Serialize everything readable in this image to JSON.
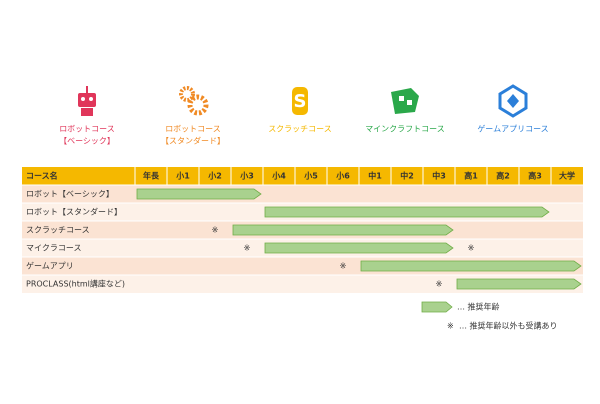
{
  "courses": [
    {
      "lines": [
        "ロボットコース",
        "【ベーシック】"
      ],
      "color": "#e0365a"
    },
    {
      "lines": [
        "ロボットコース",
        "【スタンダード】"
      ],
      "color": "#f08a24"
    },
    {
      "lines": [
        "スクラッチコース"
      ],
      "color": "#f5b800"
    },
    {
      "lines": [
        "マインクラフトコース"
      ],
      "color": "#2aa84a"
    },
    {
      "lines": [
        "ゲームアプリコース"
      ],
      "color": "#2b7fd9"
    }
  ],
  "table": {
    "corner": "コース名",
    "columns": [
      "年長",
      "小1",
      "小2",
      "小3",
      "小4",
      "小5",
      "小6",
      "中1",
      "中2",
      "中3",
      "高1",
      "高2",
      "高3",
      "大学"
    ],
    "note_mark": "※",
    "rows": [
      {
        "label": "ロボット【ベーシック】",
        "from": "年長",
        "to": "小3",
        "notes": []
      },
      {
        "label": "ロボット【スタンダード】",
        "from": "小4",
        "to": "高3",
        "notes": []
      },
      {
        "label": "スクラッチコース",
        "from": "小3",
        "to": "中3",
        "notes": [
          "小2"
        ]
      },
      {
        "label": "マイクラコース",
        "from": "小4",
        "to": "中3",
        "notes": [
          "小3",
          "高1"
        ]
      },
      {
        "label": "ゲームアプリ",
        "from": "中1",
        "to": "大学",
        "notes": [
          "小6"
        ]
      },
      {
        "label": "PROCLASS(html講座など)",
        "from": "高1",
        "to": "大学",
        "notes": [
          "中3"
        ]
      }
    ]
  },
  "legend": {
    "arrow_text": "… 推奨年齢",
    "note_text": "… 推奨年齢以外も受講あり"
  }
}
